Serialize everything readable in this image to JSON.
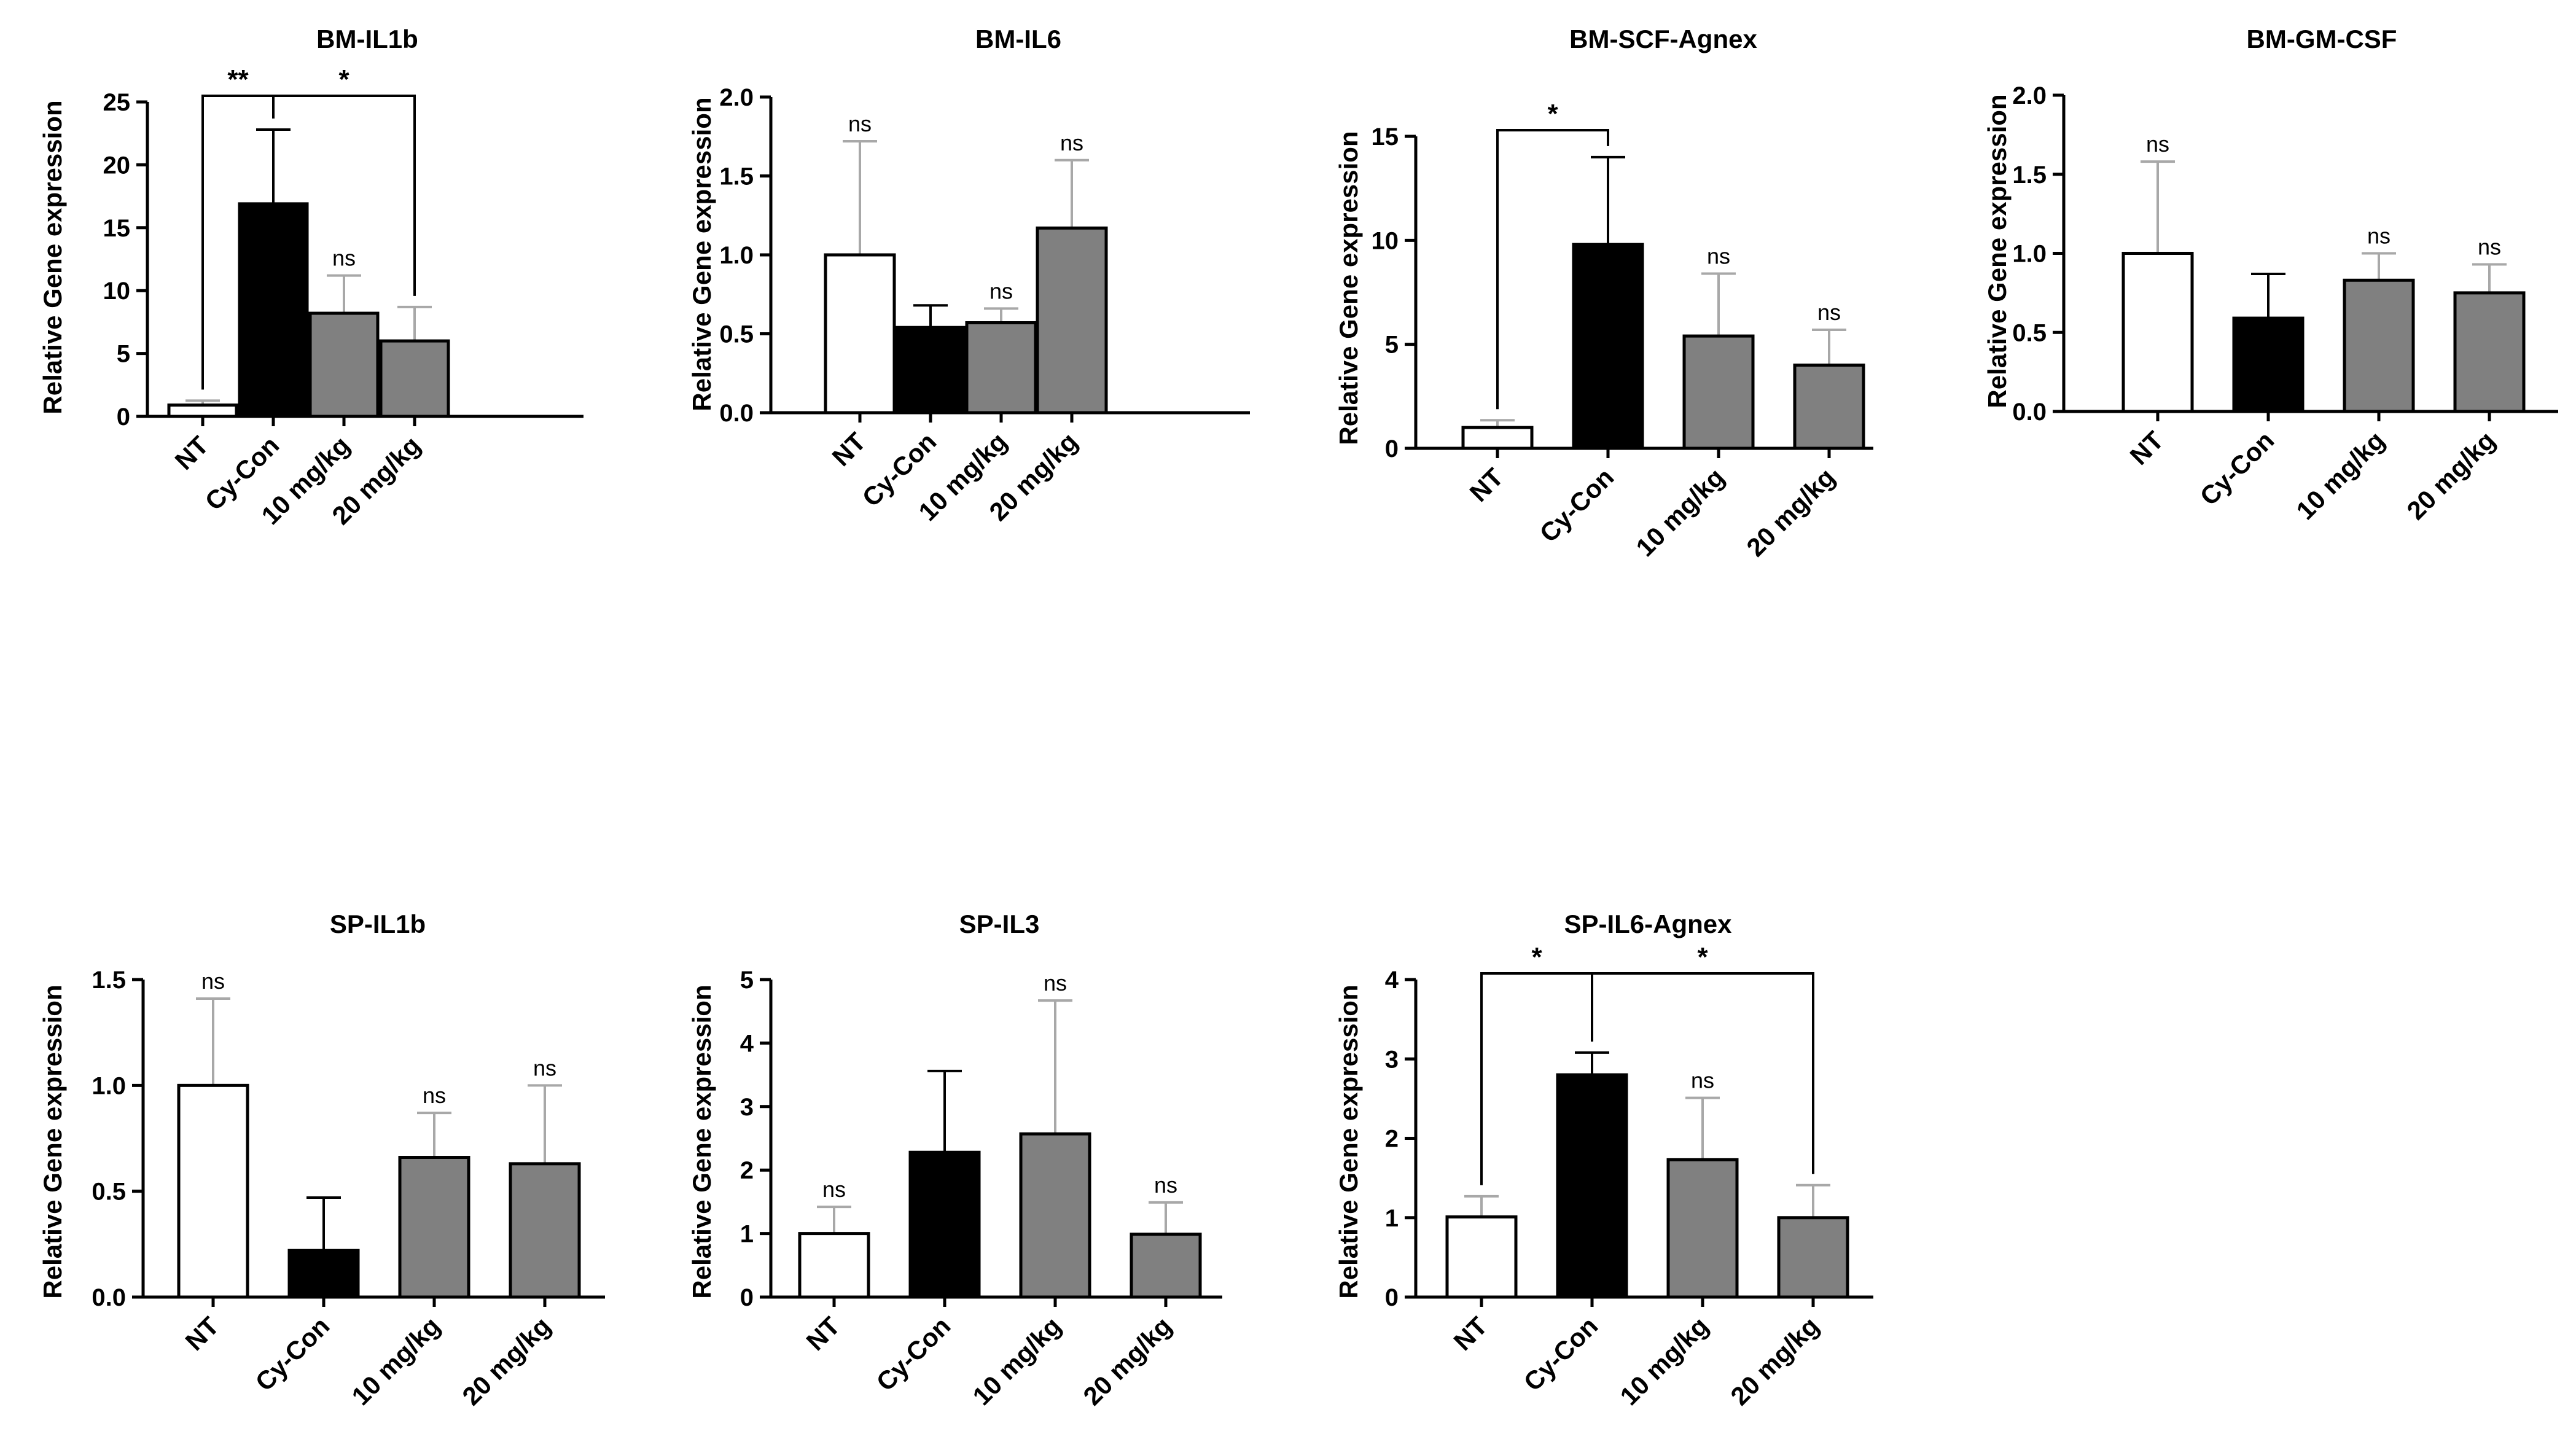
{
  "chart_data": [
    {
      "type": "bar",
      "title": "BM-IL1b",
      "ylabel": "Relative Gene expression",
      "categories": [
        "NT",
        "Cy-Con",
        "10 mg/kg",
        "20 mg/kg"
      ],
      "values": [
        0.9,
        16.9,
        8.2,
        6.0
      ],
      "errors": [
        0.35,
        5.9,
        3.0,
        2.7
      ],
      "ylim": [
        0,
        25
      ],
      "yticks": [
        "0",
        "5",
        "10",
        "15",
        "20",
        "25"
      ],
      "bar_colors": [
        "#ffffff",
        "#000000",
        "#808080",
        "#808080"
      ],
      "labels_above": [
        "",
        "",
        "ns",
        ""
      ],
      "brackets": [
        {
          "from": 0,
          "to": 1,
          "label": "**"
        },
        {
          "from": 1,
          "to": 3,
          "label": "*"
        }
      ]
    },
    {
      "type": "bar",
      "title": "BM-IL6",
      "ylabel": "Relative Gene expression",
      "categories": [
        "NT",
        "Cy-Con",
        "10 mg/kg",
        "20 mg/kg"
      ],
      "values": [
        1.0,
        0.54,
        0.57,
        1.17
      ],
      "errors": [
        0.72,
        0.14,
        0.09,
        0.43
      ],
      "ylim": [
        0,
        2.0
      ],
      "yticks": [
        "0.0",
        "0.5",
        "1.0",
        "1.5",
        "2.0"
      ],
      "bar_colors": [
        "#ffffff",
        "#000000",
        "#808080",
        "#808080"
      ],
      "labels_above": [
        "ns",
        "",
        "ns",
        "ns"
      ],
      "brackets": []
    },
    {
      "type": "bar",
      "title": "BM-SCF-Agnex",
      "ylabel": "Relative Gene expression",
      "categories": [
        "NT",
        "Cy-Con",
        "10 mg/kg",
        "20 mg/kg"
      ],
      "values": [
        1.0,
        9.8,
        5.4,
        4.0
      ],
      "errors": [
        0.35,
        4.2,
        3.0,
        1.7
      ],
      "ylim": [
        0,
        15
      ],
      "yticks": [
        "0",
        "5",
        "10",
        "15"
      ],
      "bar_colors": [
        "#ffffff",
        "#000000",
        "#808080",
        "#808080"
      ],
      "labels_above": [
        "",
        "",
        "ns",
        "ns"
      ],
      "brackets": [
        {
          "from": 0,
          "to": 1,
          "label": "*"
        }
      ]
    },
    {
      "type": "bar",
      "title": "BM-GM-CSF",
      "ylabel": "Relative Gene expression",
      "categories": [
        "NT",
        "Cy-Con",
        "10 mg/kg",
        "20 mg/kg"
      ],
      "values": [
        1.0,
        0.59,
        0.83,
        0.75
      ],
      "errors": [
        0.58,
        0.28,
        0.17,
        0.18
      ],
      "ylim": [
        0,
        2.0
      ],
      "yticks": [
        "0.0",
        "0.5",
        "1.0",
        "1.5",
        "2.0"
      ],
      "bar_colors": [
        "#ffffff",
        "#000000",
        "#808080",
        "#808080"
      ],
      "labels_above": [
        "ns",
        "",
        "ns",
        "ns"
      ],
      "brackets": []
    },
    {
      "type": "bar",
      "title": "SP-IL1b",
      "ylabel": "Relative Gene expression",
      "categories": [
        "NT",
        "Cy-Con",
        "10 mg/kg",
        "20 mg/kg"
      ],
      "values": [
        1.0,
        0.22,
        0.66,
        0.63
      ],
      "errors": [
        0.41,
        0.25,
        0.21,
        0.37
      ],
      "ylim": [
        0,
        1.5
      ],
      "yticks": [
        "0.0",
        "0.5",
        "1.0",
        "1.5"
      ],
      "bar_colors": [
        "#ffffff",
        "#000000",
        "#808080",
        "#808080"
      ],
      "labels_above": [
        "ns",
        "",
        "ns",
        "ns"
      ],
      "brackets": []
    },
    {
      "type": "bar",
      "title": "SP-IL3",
      "ylabel": "Relative Gene expression",
      "categories": [
        "NT",
        "Cy-Con",
        "10 mg/kg",
        "20 mg/kg"
      ],
      "values": [
        1.0,
        2.28,
        2.57,
        0.99
      ],
      "errors": [
        0.42,
        1.28,
        2.1,
        0.5
      ],
      "ylim": [
        0,
        5
      ],
      "yticks": [
        "0",
        "1",
        "2",
        "3",
        "4",
        "5"
      ],
      "bar_colors": [
        "#ffffff",
        "#000000",
        "#808080",
        "#808080"
      ],
      "labels_above": [
        "ns",
        "",
        "ns",
        "ns"
      ],
      "brackets": []
    },
    {
      "type": "bar",
      "title": "SP-IL6-Agnex",
      "ylabel": "Relative Gene expression",
      "categories": [
        "NT",
        "Cy-Con",
        "10 mg/kg",
        "20 mg/kg"
      ],
      "values": [
        1.01,
        2.8,
        1.73,
        1.0
      ],
      "errors": [
        0.26,
        0.28,
        0.78,
        0.41
      ],
      "ylim": [
        0,
        4
      ],
      "yticks": [
        "0",
        "1",
        "2",
        "3",
        "4"
      ],
      "bar_colors": [
        "#ffffff",
        "#000000",
        "#808080",
        "#808080"
      ],
      "labels_above": [
        "",
        "",
        "ns",
        ""
      ],
      "brackets": [
        {
          "from": 0,
          "to": 1,
          "label": "*"
        },
        {
          "from": 1,
          "to": 3,
          "label": "*"
        }
      ]
    }
  ]
}
